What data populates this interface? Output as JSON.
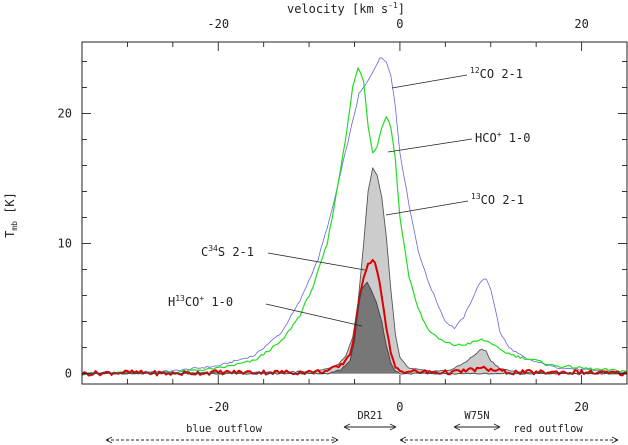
{
  "chart_data": {
    "type": "line",
    "title": "",
    "xlabel_top": "velocity [km s^-1]",
    "xlabel_top_parts": {
      "base": "velocity [km s",
      "sup": "-1",
      "tail": "]"
    },
    "ylabel": "Tmb [K]",
    "ylabel_parts": {
      "base": "T",
      "sub": "mb",
      "tail": " [K]"
    },
    "xlim": [
      -35,
      25
    ],
    "ylim": [
      -0.8,
      25.5
    ],
    "x_ticks": [
      -20,
      0,
      20
    ],
    "x_tick_labels": [
      "-20",
      "0",
      "20"
    ],
    "y_ticks": [
      0,
      10,
      20
    ],
    "y_tick_labels": [
      "0",
      "10",
      "20"
    ],
    "grid": false,
    "series": [
      {
        "name": "12CO 2-1",
        "color": "#6666dd",
        "points": [
          [
            -35,
            0.0
          ],
          [
            -25,
            0.2
          ],
          [
            -20,
            0.6
          ],
          [
            -16,
            1.4
          ],
          [
            -13,
            3.2
          ],
          [
            -11,
            5.6
          ],
          [
            -9,
            8.8
          ],
          [
            -7.5,
            12.5
          ],
          [
            -6.5,
            15.5
          ],
          [
            -5.5,
            18.5
          ],
          [
            -4.5,
            21.5
          ],
          [
            -3.5,
            22.5
          ],
          [
            -3.0,
            23.2
          ],
          [
            -2.2,
            24.3
          ],
          [
            -1.5,
            24.0
          ],
          [
            -1.0,
            23.0
          ],
          [
            -0.5,
            20.5
          ],
          [
            0,
            17.0
          ],
          [
            1,
            13.0
          ],
          [
            2,
            9.5
          ],
          [
            3,
            7.3
          ],
          [
            4,
            5.6
          ],
          [
            5,
            4.0
          ],
          [
            6,
            3.5
          ],
          [
            7,
            4.3
          ],
          [
            8,
            5.8
          ],
          [
            8.8,
            7.0
          ],
          [
            9.5,
            7.3
          ],
          [
            10,
            6.5
          ],
          [
            10.5,
            5.0
          ],
          [
            11,
            3.2
          ],
          [
            12,
            2.0
          ],
          [
            14,
            1.1
          ],
          [
            17,
            0.5
          ],
          [
            20,
            0.3
          ],
          [
            25,
            0.1
          ]
        ]
      },
      {
        "name": "HCO+ 1-0",
        "color": "#22dd22",
        "points": [
          [
            -35,
            0.0
          ],
          [
            -25,
            0.1
          ],
          [
            -20,
            0.4
          ],
          [
            -16,
            1.0
          ],
          [
            -13,
            2.5
          ],
          [
            -11,
            4.5
          ],
          [
            -9.5,
            6.8
          ],
          [
            -8,
            10.0
          ],
          [
            -7,
            13.8
          ],
          [
            -6,
            18.0
          ],
          [
            -5.2,
            22.0
          ],
          [
            -4.6,
            23.5
          ],
          [
            -4.0,
            22.5
          ],
          [
            -3.5,
            19.0
          ],
          [
            -3.0,
            17.0
          ],
          [
            -2.5,
            17.5
          ],
          [
            -2.0,
            19.0
          ],
          [
            -1.5,
            19.8
          ],
          [
            -1.0,
            19.0
          ],
          [
            -0.5,
            16.5
          ],
          [
            0,
            12.0
          ],
          [
            1,
            7.5
          ],
          [
            2,
            5.0
          ],
          [
            3,
            3.5
          ],
          [
            4,
            2.8
          ],
          [
            5,
            2.4
          ],
          [
            6,
            2.2
          ],
          [
            7,
            2.2
          ],
          [
            8,
            2.4
          ],
          [
            9,
            2.6
          ],
          [
            10,
            2.4
          ],
          [
            11,
            1.8
          ],
          [
            13,
            1.3
          ],
          [
            15,
            1.0
          ],
          [
            17,
            0.6
          ],
          [
            19,
            0.5
          ],
          [
            22,
            0.3
          ],
          [
            25,
            0.2
          ]
        ]
      },
      {
        "name": "13CO 2-1",
        "color": "#555555",
        "fill": "#cccccc",
        "points": [
          [
            -35,
            0.0
          ],
          [
            -13,
            0.1
          ],
          [
            -9,
            0.2
          ],
          [
            -7,
            0.6
          ],
          [
            -6,
            1.3
          ],
          [
            -5.2,
            2.8
          ],
          [
            -4.6,
            5.5
          ],
          [
            -4.0,
            10.0
          ],
          [
            -3.5,
            14.0
          ],
          [
            -3.0,
            15.8
          ],
          [
            -2.5,
            15.2
          ],
          [
            -2.0,
            13.5
          ],
          [
            -1.5,
            10.5
          ],
          [
            -1.0,
            6.5
          ],
          [
            -0.5,
            3.0
          ],
          [
            0,
            1.2
          ],
          [
            1,
            0.4
          ],
          [
            3,
            0.2
          ],
          [
            5,
            0.2
          ],
          [
            6,
            0.4
          ],
          [
            7,
            0.8
          ],
          [
            8,
            1.3
          ],
          [
            9,
            1.9
          ],
          [
            9.5,
            1.7
          ],
          [
            10,
            1.0
          ],
          [
            11,
            0.4
          ],
          [
            13,
            0.1
          ],
          [
            25,
            0.0
          ]
        ]
      },
      {
        "name": "C34S 2-1",
        "color": "#dd0000",
        "points": [
          [
            -35,
            0.0
          ],
          [
            -30,
            0.1
          ],
          [
            -25,
            0.0
          ],
          [
            -20,
            0.1
          ],
          [
            -15,
            0.1
          ],
          [
            -10,
            0.1
          ],
          [
            -8,
            0.2
          ],
          [
            -6.5,
            0.6
          ],
          [
            -5.5,
            1.5
          ],
          [
            -5.0,
            3.0
          ],
          [
            -4.5,
            5.5
          ],
          [
            -4.0,
            7.5
          ],
          [
            -3.5,
            8.5
          ],
          [
            -3.0,
            8.8
          ],
          [
            -2.5,
            8.0
          ],
          [
            -2.0,
            6.0
          ],
          [
            -1.5,
            3.5
          ],
          [
            -1.0,
            1.5
          ],
          [
            -0.5,
            0.5
          ],
          [
            0,
            0.2
          ],
          [
            3,
            0.1
          ],
          [
            6,
            0.1
          ],
          [
            8,
            0.3
          ],
          [
            9,
            0.4
          ],
          [
            10,
            0.3
          ],
          [
            12,
            0.1
          ],
          [
            15,
            0.1
          ],
          [
            20,
            0.1
          ],
          [
            25,
            0.0
          ]
        ]
      },
      {
        "name": "H13CO+ 1-0",
        "color": "#444444",
        "fill": "#777777",
        "points": [
          [
            -35,
            0.0
          ],
          [
            -8,
            0.0
          ],
          [
            -6.5,
            0.3
          ],
          [
            -5.5,
            1.0
          ],
          [
            -5.0,
            2.5
          ],
          [
            -4.6,
            5.0
          ],
          [
            -4.2,
            6.5
          ],
          [
            -3.6,
            7.0
          ],
          [
            -3.2,
            6.5
          ],
          [
            -2.6,
            5.5
          ],
          [
            -2.0,
            4.0
          ],
          [
            -1.5,
            2.2
          ],
          [
            -1.0,
            0.8
          ],
          [
            -0.5,
            0.2
          ],
          [
            0,
            0.0
          ],
          [
            25,
            0.0
          ]
        ]
      }
    ],
    "annotations": [
      {
        "text": "12CO 2-1",
        "parts": {
          "sup": "12",
          "base": "CO 2-1"
        }
      },
      {
        "text": "HCO+ 1-0",
        "parts": {
          "base": "HCO",
          "sup": "+",
          "tail": " 1-0"
        }
      },
      {
        "text": "13CO 2-1",
        "parts": {
          "sup": "13",
          "base": "CO 2-1"
        }
      },
      {
        "text": "C34S 2-1",
        "parts": {
          "base": "C",
          "sup": "34",
          "tail": "S 2-1"
        }
      },
      {
        "text": "H13CO+ 1-0",
        "parts": {
          "base": "H",
          "sup": "13",
          "mid": "CO",
          "sup2": "+",
          "tail": " 1-0"
        }
      }
    ],
    "range_labels": [
      {
        "text": "blue outflow",
        "from": -35,
        "to": -6
      },
      {
        "text": "DR21",
        "from": -6,
        "to": 0
      },
      {
        "text": "W75N",
        "from": 6,
        "to": 11
      },
      {
        "text": "red outflow",
        "from": 0,
        "to": 25
      }
    ]
  }
}
